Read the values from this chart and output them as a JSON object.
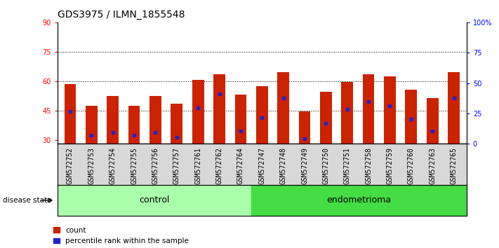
{
  "title": "GDS3975 / ILMN_1855548",
  "samples": [
    "GSM572752",
    "GSM572753",
    "GSM572754",
    "GSM572755",
    "GSM572756",
    "GSM572757",
    "GSM572761",
    "GSM572762",
    "GSM572764",
    "GSM572747",
    "GSM572748",
    "GSM572749",
    "GSM572750",
    "GSM572751",
    "GSM572758",
    "GSM572759",
    "GSM572760",
    "GSM572763",
    "GSM572765"
  ],
  "bar_heights": [
    58.5,
    47.5,
    52.5,
    47.5,
    52.5,
    48.5,
    60.5,
    63.5,
    53.0,
    57.5,
    64.5,
    44.5,
    54.5,
    59.5,
    63.5,
    62.5,
    55.5,
    51.5,
    64.5
  ],
  "blue_markers": [
    44.5,
    32.5,
    34.0,
    32.5,
    34.0,
    31.5,
    46.5,
    53.5,
    34.5,
    41.5,
    51.5,
    30.5,
    38.5,
    45.5,
    49.5,
    47.5,
    40.5,
    34.5,
    51.5
  ],
  "groups": [
    "control",
    "control",
    "control",
    "control",
    "control",
    "control",
    "control",
    "control",
    "control",
    "endometrioma",
    "endometrioma",
    "endometrioma",
    "endometrioma",
    "endometrioma",
    "endometrioma",
    "endometrioma",
    "endometrioma",
    "endometrioma",
    "endometrioma"
  ],
  "n_control": 9,
  "control_color": "#aaffaa",
  "endometrioma_color": "#44dd44",
  "bar_color": "#cc2200",
  "blue_color": "#2222cc",
  "ylim_left": [
    28,
    90
  ],
  "yticks_left": [
    30,
    45,
    60,
    75,
    90
  ],
  "ylim_right": [
    0,
    100
  ],
  "yticks_right": [
    0,
    25,
    50,
    75,
    100
  ],
  "background_color": "#ffffff",
  "grid_dotted_vals": [
    45,
    60,
    75
  ],
  "title_fontsize": 10,
  "tick_fontsize": 7,
  "strip_fontsize": 9
}
